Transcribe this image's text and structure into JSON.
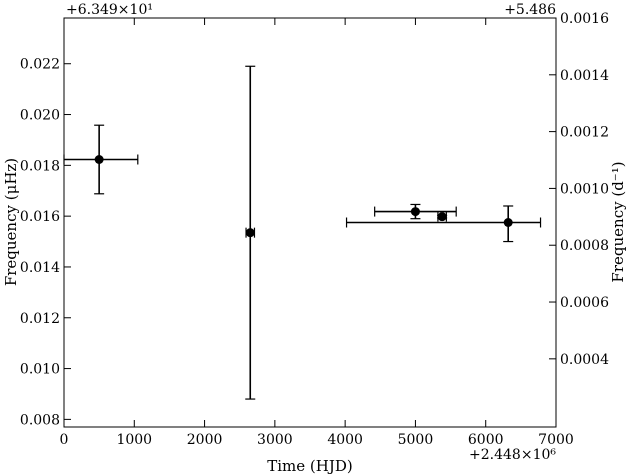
{
  "chart_data": {
    "type": "scatter",
    "error_bars": true,
    "marker": "filled-circle",
    "grid": false,
    "legend": "none",
    "x": {
      "label": "Time (HJD)",
      "range": [
        0,
        7000
      ],
      "ticks": [
        0,
        1000,
        2000,
        3000,
        4000,
        5000,
        6000,
        7000
      ],
      "offset": "+2.448×10⁶"
    },
    "y_left": {
      "label": "Frequency (μHz)",
      "range": [
        0.0077,
        0.0238
      ],
      "ticks": [
        0.008,
        0.01,
        0.012,
        0.014,
        0.016,
        0.018,
        0.02,
        0.022
      ],
      "tick_labels": [
        "0.008",
        "0.010",
        "0.012",
        "0.014",
        "0.016",
        "0.018",
        "0.020",
        "0.022"
      ],
      "offset": "+6.349×10¹"
    },
    "y_right": {
      "label": "Frequency (d⁻¹)",
      "range": [
        0.00016,
        0.0016
      ],
      "ticks": [
        0.0004,
        0.0006,
        0.0008,
        0.001,
        0.0012,
        0.0014,
        0.0016
      ],
      "tick_labels": [
        "0.0004",
        "0.0006",
        "0.0008",
        "0.0010",
        "0.0012",
        "0.0014",
        "0.0016"
      ],
      "offset": "+5.486"
    },
    "points": [
      {
        "x": 500,
        "y": 0.01823,
        "xerr_low": 550,
        "xerr_high": 550,
        "yerr_low": 0.00135,
        "yerr_high": 0.00135
      },
      {
        "x": 2650,
        "y": 0.01535,
        "xerr_low": 60,
        "xerr_high": 60,
        "yerr_low": 0.00655,
        "yerr_high": 0.00655
      },
      {
        "x": 5000,
        "y": 0.01618,
        "xerr_low": 580,
        "xerr_high": 580,
        "yerr_low": 0.00028,
        "yerr_high": 0.00028
      },
      {
        "x": 5380,
        "y": 0.01598,
        "xerr_low": 60,
        "xerr_high": 60,
        "yerr_low": 5e-05,
        "yerr_high": 5e-05
      },
      {
        "x": 6320,
        "y": 0.01575,
        "xerr_low": 2300,
        "xerr_high": 460,
        "yerr_low": 0.00075,
        "yerr_high": 0.00065
      }
    ]
  }
}
